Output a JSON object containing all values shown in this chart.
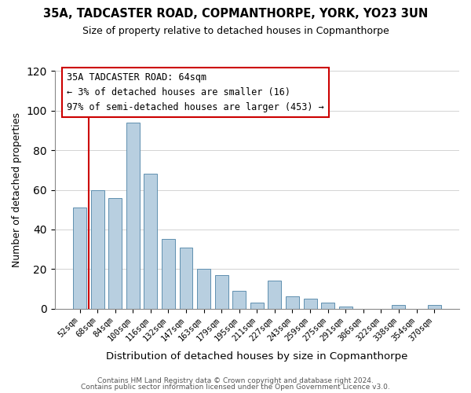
{
  "title1": "35A, TADCASTER ROAD, COPMANTHORPE, YORK, YO23 3UN",
  "title2": "Size of property relative to detached houses in Copmanthorpe",
  "xlabel": "Distribution of detached houses by size in Copmanthorpe",
  "ylabel": "Number of detached properties",
  "footer1": "Contains HM Land Registry data © Crown copyright and database right 2024.",
  "footer2": "Contains public sector information licensed under the Open Government Licence v3.0.",
  "annotation_title": "35A TADCASTER ROAD: 64sqm",
  "annotation_line1": "← 3% of detached houses are smaller (16)",
  "annotation_line2": "97% of semi-detached houses are larger (453) →",
  "bar_color": "#b8cfe0",
  "bar_edge_color": "#6090b0",
  "vline_color": "#cc0000",
  "bins": [
    "52sqm",
    "68sqm",
    "84sqm",
    "100sqm",
    "116sqm",
    "132sqm",
    "147sqm",
    "163sqm",
    "179sqm",
    "195sqm",
    "211sqm",
    "227sqm",
    "243sqm",
    "259sqm",
    "275sqm",
    "291sqm",
    "306sqm",
    "322sqm",
    "338sqm",
    "354sqm",
    "370sqm"
  ],
  "values": [
    51,
    60,
    56,
    94,
    68,
    35,
    31,
    20,
    17,
    9,
    3,
    14,
    6,
    5,
    3,
    1,
    0,
    0,
    2,
    0,
    2
  ],
  "ylim": [
    0,
    120
  ],
  "yticks": [
    0,
    20,
    40,
    60,
    80,
    100,
    120
  ],
  "annotation_box_color": "#ffffff",
  "annotation_box_edge_color": "#cc0000",
  "grid_color": "#cccccc",
  "bg_color": "#ffffff",
  "title_color": "#000000",
  "footer_color": "#555555"
}
